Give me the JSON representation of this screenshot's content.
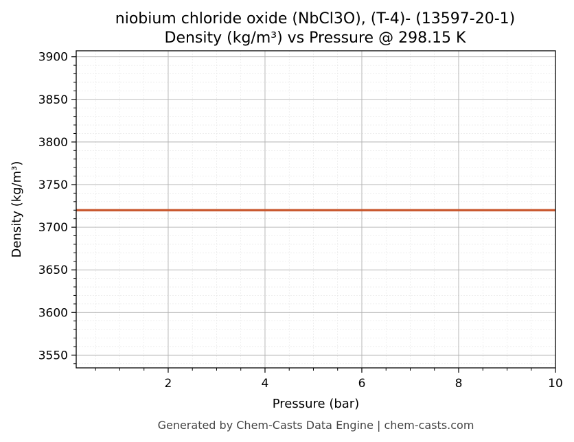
{
  "chart_data": {
    "type": "line",
    "title": "niobium chloride oxide (NbCl3O), (T-4)- (13597-20-1)",
    "subtitle": "Density (kg/m³) vs Pressure @ 298.15 K",
    "xlabel": "Pressure (bar)",
    "ylabel": "Density (kg/m³)",
    "xlim": [
      0.1,
      10
    ],
    "ylim": [
      3535,
      3907
    ],
    "x_ticks": [
      2,
      4,
      6,
      8,
      10
    ],
    "y_ticks": [
      3550,
      3600,
      3650,
      3700,
      3750,
      3800,
      3850,
      3900
    ],
    "grid": true,
    "series": [
      {
        "color": "#c8552b",
        "x": [
          0.1,
          1,
          2,
          3,
          4,
          5,
          6,
          7,
          8,
          9,
          10
        ],
        "y": [
          3720,
          3720,
          3720,
          3720,
          3720,
          3720,
          3720,
          3720,
          3720,
          3720,
          3720
        ]
      }
    ]
  },
  "footer": "Generated by Chem-Casts Data Engine | chem-casts.com"
}
